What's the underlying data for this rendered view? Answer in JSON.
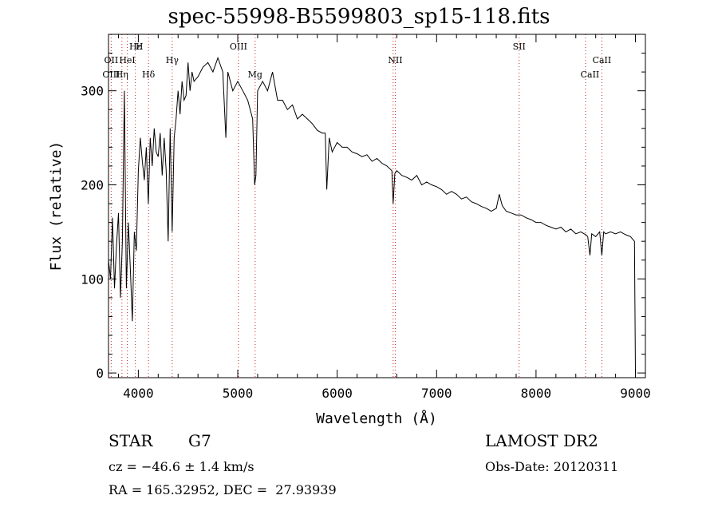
{
  "chart_data": {
    "type": "line",
    "title": "spec-55998-B5599803_sp15-118.fits",
    "xlabel": "Wavelength (Å)",
    "ylabel": "Flux (relative)",
    "xlim": [
      3700,
      9100
    ],
    "ylim": [
      -5,
      360
    ],
    "x_ticks": [
      4000,
      5000,
      6000,
      7000,
      8000,
      9000
    ],
    "y_ticks": [
      0,
      100,
      200,
      300
    ],
    "grid": false,
    "series": [
      {
        "x": [
          3700,
          3720,
          3740,
          3760,
          3780,
          3800,
          3820,
          3840,
          3860,
          3880,
          3900,
          3920,
          3940,
          3960,
          3980,
          4000,
          4020,
          4040,
          4060,
          4080,
          4100,
          4120,
          4140,
          4160,
          4180,
          4200,
          4220,
          4240,
          4260,
          4280,
          4300,
          4320,
          4340,
          4360,
          4380,
          4400,
          4420,
          4440,
          4460,
          4480,
          4500,
          4520,
          4540,
          4560,
          4600,
          4650,
          4700,
          4750,
          4800,
          4850,
          4880,
          4900,
          4950,
          5000,
          5050,
          5100,
          5150,
          5170,
          5183,
          5200,
          5250,
          5300,
          5350,
          5400,
          5450,
          5500,
          5550,
          5600,
          5650,
          5700,
          5750,
          5800,
          5850,
          5880,
          5895,
          5920,
          5950,
          6000,
          6050,
          6100,
          6150,
          6200,
          6250,
          6300,
          6350,
          6400,
          6450,
          6500,
          6550,
          6563,
          6580,
          6600,
          6650,
          6700,
          6750,
          6800,
          6850,
          6900,
          6950,
          7000,
          7050,
          7100,
          7150,
          7200,
          7250,
          7300,
          7350,
          7400,
          7450,
          7500,
          7550,
          7600,
          7630,
          7660,
          7700,
          7750,
          7800,
          7850,
          7900,
          7950,
          8000,
          8050,
          8100,
          8150,
          8200,
          8250,
          8300,
          8350,
          8400,
          8450,
          8500,
          8520,
          8542,
          8560,
          8600,
          8640,
          8662,
          8680,
          8700,
          8750,
          8800,
          8850,
          8900,
          8950,
          8990,
          9000
        ],
        "y": [
          120,
          100,
          165,
          90,
          135,
          170,
          80,
          140,
          300,
          90,
          160,
          110,
          55,
          150,
          130,
          215,
          250,
          225,
          205,
          240,
          180,
          250,
          220,
          260,
          235,
          230,
          255,
          210,
          250,
          215,
          140,
          260,
          150,
          250,
          270,
          300,
          275,
          310,
          290,
          295,
          330,
          300,
          320,
          310,
          315,
          325,
          330,
          320,
          335,
          320,
          250,
          320,
          300,
          310,
          300,
          290,
          270,
          200,
          210,
          300,
          310,
          300,
          320,
          290,
          290,
          280,
          285,
          270,
          275,
          270,
          265,
          258,
          255,
          255,
          195,
          250,
          235,
          245,
          240,
          240,
          235,
          233,
          230,
          232,
          225,
          228,
          223,
          220,
          215,
          180,
          212,
          215,
          210,
          208,
          205,
          210,
          200,
          203,
          200,
          198,
          195,
          190,
          193,
          190,
          185,
          187,
          182,
          180,
          177,
          175,
          172,
          175,
          190,
          178,
          172,
          170,
          168,
          168,
          165,
          163,
          160,
          160,
          157,
          155,
          153,
          155,
          150,
          153,
          148,
          150,
          147,
          145,
          125,
          148,
          145,
          150,
          125,
          150,
          148,
          150,
          148,
          150,
          147,
          145,
          140,
          0
        ]
      }
    ],
    "line_annotations": [
      {
        "label": "Hε",
        "x": 3970,
        "row": 1
      },
      {
        "label": "H",
        "x": 4010,
        "row": 1
      },
      {
        "label": "OII",
        "x": 3727,
        "row": 2
      },
      {
        "label": "HeI",
        "x": 3889,
        "row": 2
      },
      {
        "label": "Hγ",
        "x": 4341,
        "row": 2
      },
      {
        "label": "OIII",
        "x": 3727,
        "row": 3
      },
      {
        "label": "Hη",
        "x": 3835,
        "row": 3
      },
      {
        "label": "Hδ",
        "x": 4102,
        "row": 3
      },
      {
        "label": "OIII",
        "x": 5007,
        "row": 1
      },
      {
        "label": "Mg",
        "x": 5175,
        "row": 3
      },
      {
        "label": "NII",
        "x": 6584,
        "row": 2
      },
      {
        "label": "SII",
        "x": 7830,
        "row": 1
      },
      {
        "label": "CaII",
        "x": 8542,
        "row": 3
      },
      {
        "label": "CaII",
        "x": 8662,
        "row": 2
      }
    ],
    "marker_lines": [
      3727,
      3835,
      3889,
      3970,
      4102,
      4341,
      5007,
      5175,
      6563,
      6584,
      7830,
      8498,
      8662
    ]
  },
  "footer": {
    "object_class": "STAR",
    "subclass": "G7",
    "survey": "LAMOST DR2",
    "cz": "cz = −46.6 ± 1.4 km/s",
    "obs_date": "Obs-Date: 20120311",
    "radec": "RA = 165.32952, DEC =  27.93939"
  },
  "colors": {
    "spectrum": "#000000",
    "marker": "#cc2222",
    "axis": "#000000"
  }
}
